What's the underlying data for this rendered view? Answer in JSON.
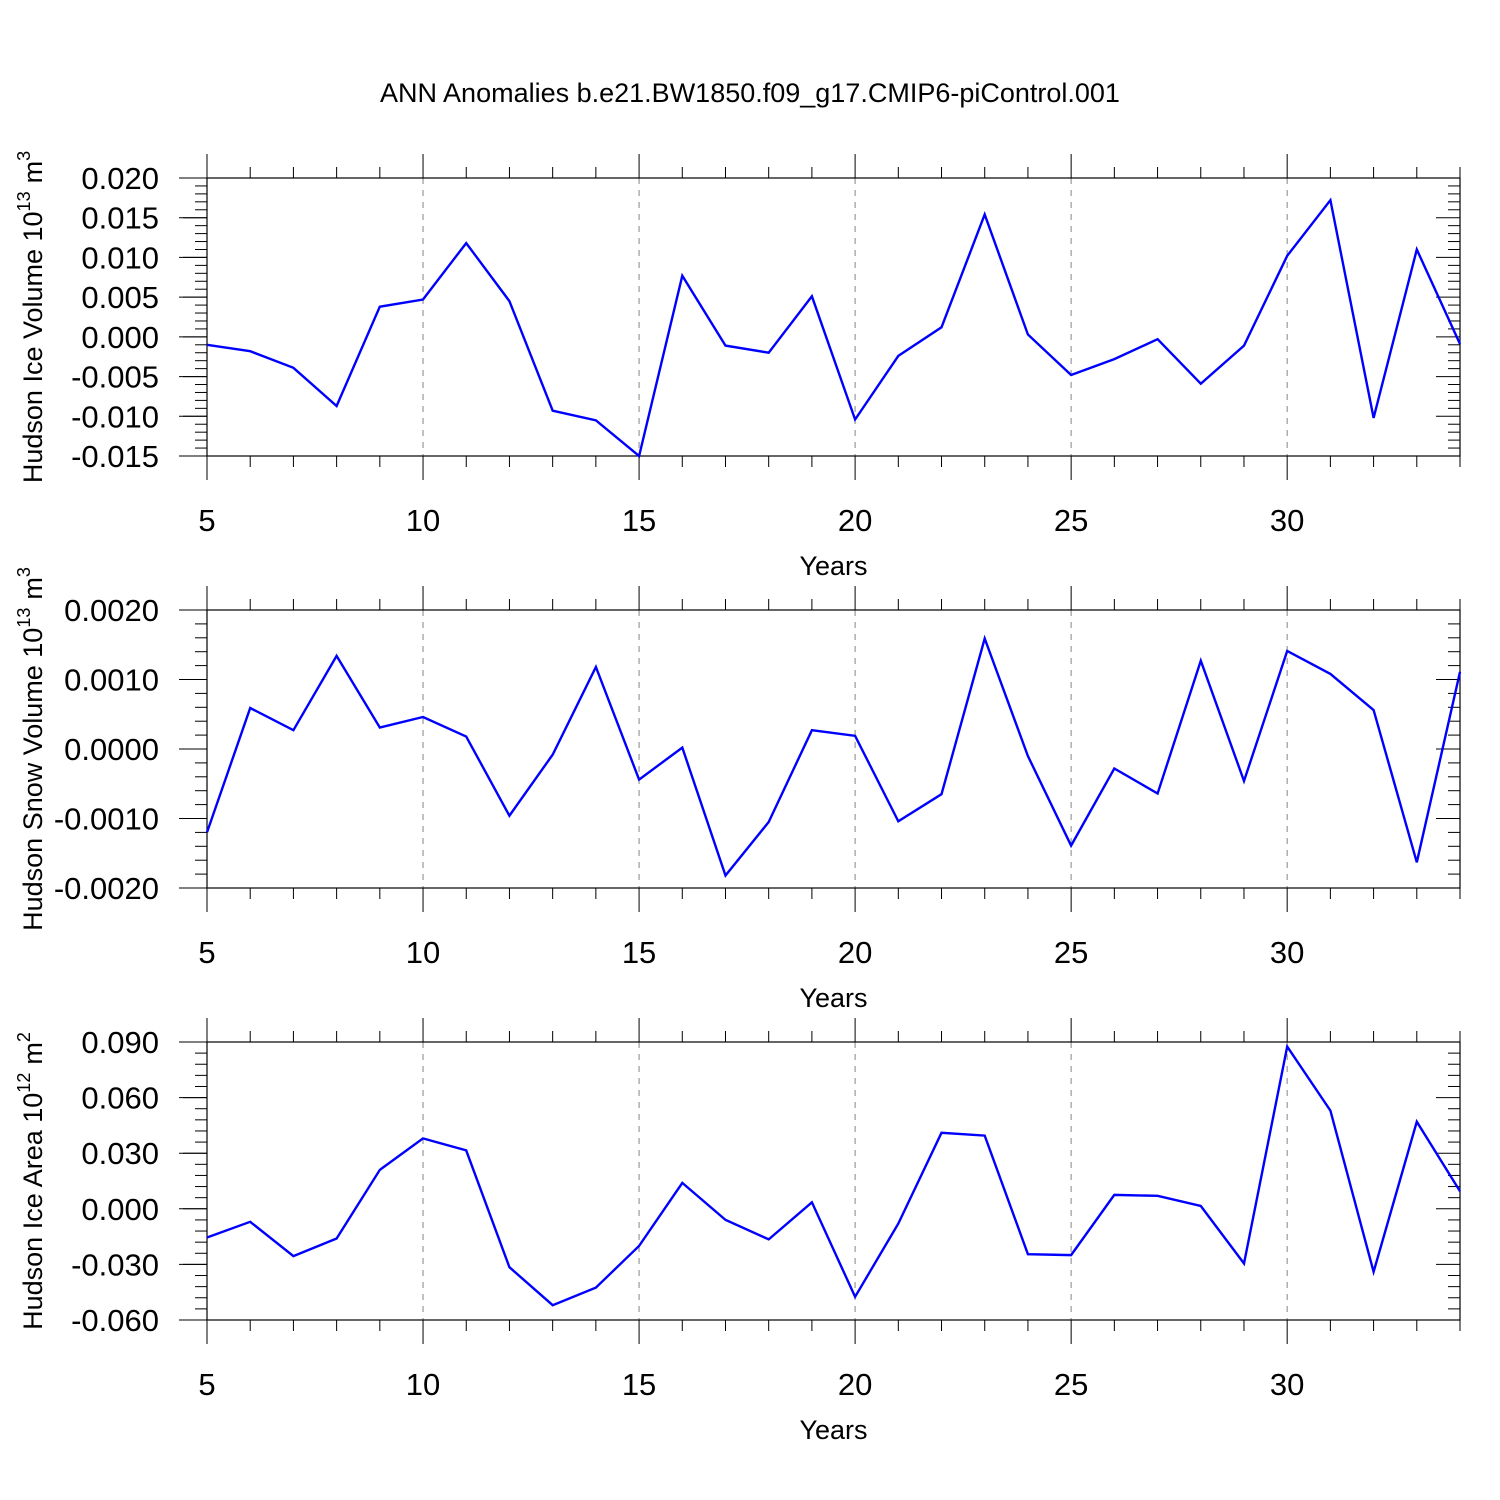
{
  "title": "ANN Anomalies b.e21.BW1850.f09_g17.CMIP6-piControl.001",
  "chart_data": [
    {
      "type": "line",
      "ylabel_main": "Hudson Ice Volume 10",
      "ylabel_exp": "13",
      "ylabel_unit": "m",
      "ylabel_unit_exp": "3",
      "xlabel": "Years",
      "xlim": [
        5,
        34
      ],
      "ylim": [
        -0.015,
        0.02
      ],
      "xticks": [
        5,
        10,
        15,
        20,
        25,
        30
      ],
      "xtick_labels": [
        "5",
        "10",
        "15",
        "20",
        "25",
        "30"
      ],
      "yticks": [
        -0.015,
        -0.01,
        -0.005,
        0.0,
        0.005,
        0.01,
        0.015,
        0.02
      ],
      "ytick_labels": [
        "-0.015",
        "-0.010",
        "-0.005",
        "0.000",
        "0.005",
        "0.010",
        "0.015",
        "0.020"
      ],
      "x": [
        5,
        6,
        7,
        8,
        9,
        10,
        11,
        12,
        13,
        14,
        15,
        16,
        17,
        18,
        19,
        20,
        21,
        22,
        23,
        24,
        25,
        26,
        27,
        28,
        29,
        30,
        31,
        32,
        33,
        34
      ],
      "series": [
        {
          "color": "#0000ff",
          "values": [
            -0.001,
            -0.0018,
            -0.0039,
            -0.0087,
            0.0038,
            0.0047,
            0.0118,
            0.0045,
            -0.0093,
            -0.0105,
            -0.015,
            0.0077,
            -0.0011,
            -0.002,
            0.0051,
            -0.0104,
            -0.0024,
            0.0012,
            0.0154,
            0.0003,
            -0.0048,
            -0.0028,
            -0.0003,
            -0.0059,
            -0.0011,
            0.0102,
            0.0172,
            -0.0102,
            0.011,
            -0.0009
          ]
        }
      ],
      "grid": "dashed vertical at major x ticks"
    },
    {
      "type": "line",
      "ylabel_main": "Hudson Snow Volume 10",
      "ylabel_exp": "13",
      "ylabel_unit": "m",
      "ylabel_unit_exp": "3",
      "xlabel": "Years",
      "xlim": [
        5,
        34
      ],
      "ylim": [
        -0.002,
        0.002
      ],
      "xticks": [
        5,
        10,
        15,
        20,
        25,
        30
      ],
      "xtick_labels": [
        "5",
        "10",
        "15",
        "20",
        "25",
        "30"
      ],
      "yticks": [
        -0.002,
        -0.001,
        0.0,
        0.001,
        0.002
      ],
      "ytick_labels": [
        "-0.0020",
        "-0.0010",
        "0.0000",
        "0.0010",
        "0.0020"
      ],
      "x": [
        5,
        6,
        7,
        8,
        9,
        10,
        11,
        12,
        13,
        14,
        15,
        16,
        17,
        18,
        19,
        20,
        21,
        22,
        23,
        24,
        25,
        26,
        27,
        28,
        29,
        30,
        31,
        32,
        33,
        34
      ],
      "series": [
        {
          "color": "#0000ff",
          "values": [
            -0.0012,
            0.00059,
            0.00027,
            0.00134,
            0.00031,
            0.00046,
            0.00018,
            -0.00096,
            -8e-05,
            0.00118,
            -0.00044,
            2e-05,
            -0.00182,
            -0.00105,
            0.00027,
            0.00019,
            -0.00104,
            -0.00065,
            0.00159,
            -0.0001,
            -0.00139,
            -0.00028,
            -0.00064,
            0.00127,
            -0.00046,
            0.00141,
            0.00108,
            0.00056,
            -0.00163,
            0.00111
          ]
        }
      ],
      "grid": "dashed vertical at major x ticks"
    },
    {
      "type": "line",
      "ylabel_main": "Hudson Ice Area 10",
      "ylabel_exp": "12",
      "ylabel_unit": "m",
      "ylabel_unit_exp": "2",
      "xlabel": "Years",
      "xlim": [
        5,
        34
      ],
      "ylim": [
        -0.06,
        0.09
      ],
      "xticks": [
        5,
        10,
        15,
        20,
        25,
        30
      ],
      "xtick_labels": [
        "5",
        "10",
        "15",
        "20",
        "25",
        "30"
      ],
      "yticks": [
        -0.06,
        -0.03,
        0.0,
        0.03,
        0.06,
        0.09
      ],
      "ytick_labels": [
        "-0.060",
        "-0.030",
        "0.000",
        "0.030",
        "0.060",
        "0.090"
      ],
      "x": [
        5,
        6,
        7,
        8,
        9,
        10,
        11,
        12,
        13,
        14,
        15,
        16,
        17,
        18,
        19,
        20,
        21,
        22,
        23,
        24,
        25,
        26,
        27,
        28,
        29,
        30,
        31,
        32,
        33,
        34
      ],
      "series": [
        {
          "color": "#0000ff",
          "values": [
            -0.0155,
            -0.007,
            -0.0255,
            -0.016,
            0.021,
            0.038,
            0.0315,
            -0.0315,
            -0.052,
            -0.0425,
            -0.02,
            0.014,
            -0.006,
            -0.0165,
            0.0035,
            -0.0475,
            -0.008,
            0.041,
            0.0395,
            -0.0245,
            -0.025,
            0.0075,
            0.007,
            0.0015,
            -0.0295,
            0.0875,
            0.053,
            -0.034,
            0.047,
            0.0095
          ]
        }
      ],
      "grid": "dashed vertical at major x ticks"
    }
  ]
}
